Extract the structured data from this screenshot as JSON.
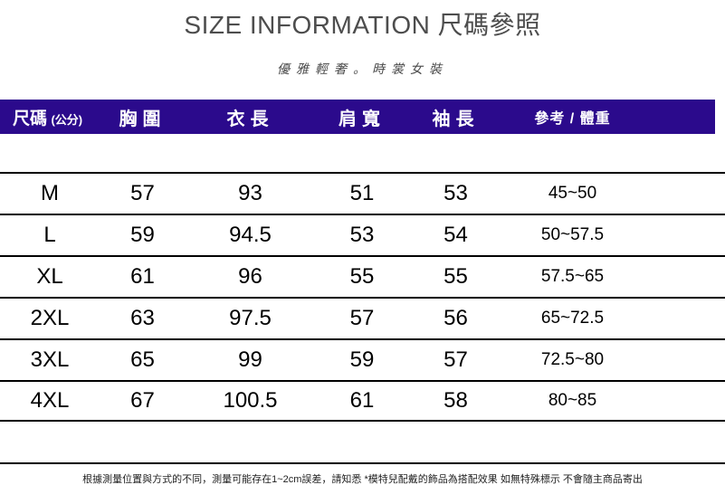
{
  "page": {
    "title": "SIZE INFORMATION 尺碼參照",
    "subtitle": "優雅輕奢。時裳女裝",
    "footer_note": "根據測量位置與方式的不同，測量可能存在1~2cm誤差，請知悉 *模特兒配戴的飾品為搭配效果 如無特殊標示 不會隨主商品寄出"
  },
  "colors": {
    "header_bg": "#2b0a8c",
    "header_text": "#ffffff",
    "title_text": "#4d4d4d",
    "body_text": "#000000"
  },
  "size_table": {
    "size_label": "尺碼",
    "unit_label": "(公分)",
    "columns": [
      "胸圍",
      "衣長",
      "肩寬",
      "袖長",
      "參考 / 體重"
    ],
    "rows": [
      {
        "size": "M",
        "values": [
          "57",
          "93",
          "51",
          "53",
          "45~50"
        ]
      },
      {
        "size": "L",
        "values": [
          "59",
          "94.5",
          "53",
          "54",
          "50~57.5"
        ]
      },
      {
        "size": "XL",
        "values": [
          "61",
          "96",
          "55",
          "55",
          "57.5~65"
        ]
      },
      {
        "size": "2XL",
        "values": [
          "63",
          "97.5",
          "57",
          "56",
          "65~72.5"
        ]
      },
      {
        "size": "3XL",
        "values": [
          "65",
          "99",
          "59",
          "57",
          "72.5~80"
        ]
      },
      {
        "size": "4XL",
        "values": [
          "67",
          "100.5",
          "61",
          "58",
          "80~85"
        ]
      }
    ]
  }
}
